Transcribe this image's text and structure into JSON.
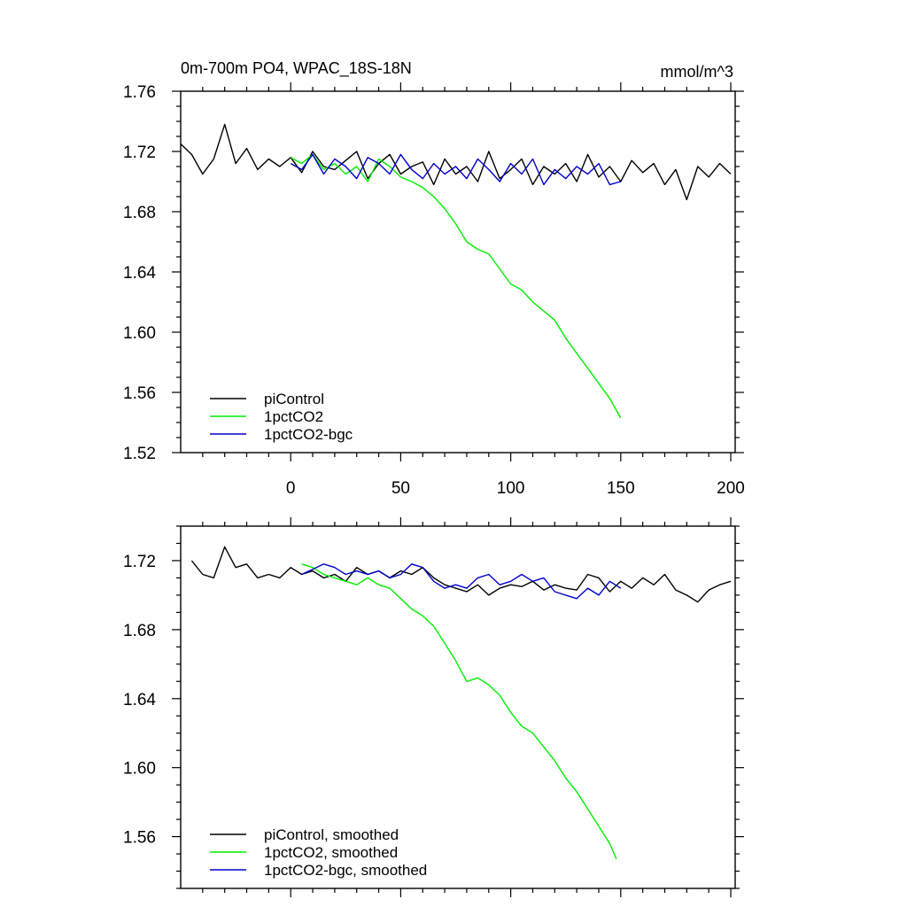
{
  "chart_data": [
    {
      "type": "line",
      "title": "0m-700m PO4, WPAC_18S-18N",
      "units": "mmol/m^3",
      "xlim": [
        -50,
        202
      ],
      "ylim": [
        1.52,
        1.76
      ],
      "xticks": [
        0,
        50,
        100,
        150,
        200
      ],
      "xtick_labels": [
        "0",
        "50",
        "100",
        "150",
        "200"
      ],
      "yticks": [
        1.52,
        1.56,
        1.6,
        1.64,
        1.68,
        1.72,
        1.76
      ],
      "ytick_labels": [
        "1.52",
        "1.56",
        "1.60",
        "1.64",
        "1.68",
        "1.72",
        "1.76"
      ],
      "legend_position": "bottom-left",
      "series": [
        {
          "name": "piControl",
          "color": "#000000",
          "x": [
            -50,
            -45,
            -40,
            -35,
            -30,
            -25,
            -20,
            -15,
            -10,
            -5,
            0,
            5,
            10,
            15,
            20,
            25,
            30,
            35,
            40,
            45,
            50,
            55,
            60,
            65,
            70,
            75,
            80,
            85,
            90,
            95,
            100,
            105,
            110,
            115,
            120,
            125,
            130,
            135,
            140,
            145,
            150,
            155,
            160,
            165,
            170,
            175,
            180,
            185,
            190,
            195,
            200
          ],
          "values": [
            1.725,
            1.718,
            1.705,
            1.715,
            1.738,
            1.712,
            1.722,
            1.708,
            1.715,
            1.71,
            1.716,
            1.706,
            1.72,
            1.71,
            1.708,
            1.714,
            1.72,
            1.702,
            1.712,
            1.718,
            1.705,
            1.71,
            1.713,
            1.698,
            1.715,
            1.705,
            1.71,
            1.7,
            1.72,
            1.702,
            1.708,
            1.715,
            1.698,
            1.71,
            1.705,
            1.712,
            1.7,
            1.718,
            1.703,
            1.71,
            1.7,
            1.714,
            1.706,
            1.712,
            1.698,
            1.708,
            1.688,
            1.71,
            1.703,
            1.712,
            1.705
          ]
        },
        {
          "name": "1pctCO2",
          "color": "#00ee00",
          "x": [
            0,
            5,
            10,
            15,
            20,
            25,
            30,
            35,
            40,
            45,
            50,
            55,
            60,
            65,
            70,
            75,
            80,
            85,
            90,
            95,
            100,
            105,
            110,
            115,
            120,
            125,
            130,
            135,
            140,
            145,
            150
          ],
          "values": [
            1.716,
            1.712,
            1.718,
            1.708,
            1.712,
            1.705,
            1.71,
            1.7,
            1.715,
            1.71,
            1.703,
            1.7,
            1.696,
            1.69,
            1.682,
            1.672,
            1.66,
            1.655,
            1.652,
            1.642,
            1.632,
            1.628,
            1.62,
            1.614,
            1.608,
            1.596,
            1.586,
            1.576,
            1.566,
            1.556,
            1.543
          ]
        },
        {
          "name": "1pctCO2-bgc",
          "color": "#0000cc",
          "x": [
            0,
            5,
            10,
            15,
            20,
            25,
            30,
            35,
            40,
            45,
            50,
            55,
            60,
            65,
            70,
            75,
            80,
            85,
            90,
            95,
            100,
            105,
            110,
            115,
            120,
            125,
            130,
            135,
            140,
            145,
            150
          ],
          "values": [
            1.712,
            1.708,
            1.718,
            1.705,
            1.715,
            1.71,
            1.702,
            1.716,
            1.712,
            1.705,
            1.718,
            1.708,
            1.702,
            1.712,
            1.705,
            1.71,
            1.702,
            1.715,
            1.708,
            1.7,
            1.712,
            1.705,
            1.715,
            1.698,
            1.708,
            1.702,
            1.71,
            1.705,
            1.712,
            1.698,
            1.7
          ]
        }
      ]
    },
    {
      "type": "line",
      "title": "",
      "xlim": [
        -50,
        202
      ],
      "ylim": [
        1.53,
        1.74
      ],
      "yticks": [
        1.56,
        1.6,
        1.64,
        1.68,
        1.72
      ],
      "ytick_labels": [
        "1.56",
        "1.60",
        "1.64",
        "1.68",
        "1.72"
      ],
      "legend_position": "bottom-left",
      "series": [
        {
          "name": "piControl, smoothed",
          "color": "#000000",
          "x": [
            -45,
            -40,
            -35,
            -30,
            -25,
            -20,
            -15,
            -10,
            -5,
            0,
            5,
            10,
            15,
            20,
            25,
            30,
            35,
            40,
            45,
            50,
            55,
            60,
            65,
            70,
            75,
            80,
            85,
            90,
            95,
            100,
            105,
            110,
            115,
            120,
            125,
            130,
            135,
            140,
            145,
            150,
            155,
            160,
            165,
            170,
            175,
            180,
            185,
            190,
            195,
            200
          ],
          "values": [
            1.72,
            1.712,
            1.71,
            1.728,
            1.716,
            1.718,
            1.71,
            1.712,
            1.71,
            1.716,
            1.712,
            1.714,
            1.71,
            1.712,
            1.708,
            1.716,
            1.712,
            1.714,
            1.71,
            1.714,
            1.712,
            1.716,
            1.71,
            1.706,
            1.704,
            1.702,
            1.706,
            1.7,
            1.704,
            1.706,
            1.705,
            1.708,
            1.703,
            1.706,
            1.704,
            1.703,
            1.712,
            1.71,
            1.702,
            1.708,
            1.704,
            1.71,
            1.706,
            1.712,
            1.703,
            1.7,
            1.696,
            1.703,
            1.706,
            1.708
          ]
        },
        {
          "name": "1pctCO2, smoothed",
          "color": "#00ee00",
          "x": [
            5,
            10,
            15,
            20,
            25,
            30,
            35,
            40,
            45,
            50,
            55,
            60,
            65,
            70,
            75,
            80,
            85,
            90,
            95,
            100,
            105,
            110,
            115,
            120,
            125,
            130,
            135,
            140,
            145,
            148
          ],
          "values": [
            1.718,
            1.716,
            1.712,
            1.71,
            1.708,
            1.706,
            1.71,
            1.706,
            1.704,
            1.698,
            1.692,
            1.688,
            1.682,
            1.672,
            1.662,
            1.65,
            1.652,
            1.648,
            1.642,
            1.632,
            1.624,
            1.62,
            1.612,
            1.604,
            1.594,
            1.586,
            1.576,
            1.566,
            1.556,
            1.547
          ]
        },
        {
          "name": "1pctCO2-bgc, smoothed",
          "color": "#0000cc",
          "x": [
            5,
            10,
            15,
            20,
            25,
            30,
            35,
            40,
            45,
            50,
            55,
            60,
            65,
            70,
            75,
            80,
            85,
            90,
            95,
            100,
            105,
            110,
            115,
            120,
            125,
            130,
            135,
            140,
            145,
            150
          ],
          "values": [
            1.712,
            1.715,
            1.718,
            1.716,
            1.712,
            1.714,
            1.712,
            1.714,
            1.71,
            1.712,
            1.718,
            1.716,
            1.708,
            1.704,
            1.706,
            1.704,
            1.71,
            1.712,
            1.706,
            1.708,
            1.712,
            1.708,
            1.71,
            1.702,
            1.7,
            1.698,
            1.704,
            1.7,
            1.708,
            1.704
          ]
        }
      ]
    }
  ]
}
